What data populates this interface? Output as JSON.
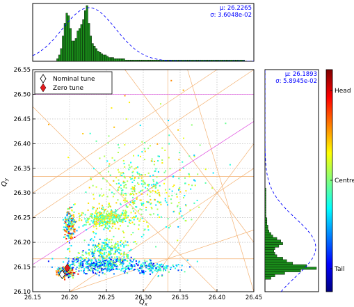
{
  "chart_data": [
    {
      "type": "scatter",
      "role": "main",
      "xlabel": "Q_x",
      "ylabel": "Q_y",
      "xlim": [
        26.15,
        26.45
      ],
      "ylim": [
        26.1,
        26.55
      ],
      "x_ticks": [
        "26.15",
        "26.20",
        "26.25",
        "26.30",
        "26.35",
        "26.40",
        "26.45"
      ],
      "y_ticks": [
        "26.10",
        "26.15",
        "26.20",
        "26.25",
        "26.30",
        "26.35",
        "26.40",
        "26.45",
        "26.50",
        "26.55"
      ],
      "grid": true,
      "legend": {
        "placement": "top-left",
        "entries": [
          {
            "label": "Nominal tune",
            "marker": "open-diamond",
            "color": "#ffffff"
          },
          {
            "label": "Zero tune",
            "marker": "filled-diamond",
            "color": "#e31a1c"
          }
        ]
      },
      "markers": {
        "nominal_tune": [
          26.19,
          26.135
        ],
        "zero_tune": [
          26.197,
          26.148
        ]
      },
      "resonance_lines": {
        "orange": [
          {
            "kind": "h",
            "y": 26.1667
          },
          {
            "kind": "h",
            "y": 26.3333
          },
          {
            "kind": "v",
            "x": 26.3333
          },
          {
            "kind": "seg",
            "x1": 26.15,
            "y1": 26.3,
            "x2": 26.4,
            "y2": 26.55
          },
          {
            "kind": "seg",
            "x1": 26.15,
            "y1": 26.25,
            "x2": 26.45,
            "y2": 26.55
          },
          {
            "kind": "seg",
            "x1": 26.2,
            "y1": 26.1,
            "x2": 26.45,
            "y2": 26.35
          },
          {
            "kind": "seg",
            "x1": 26.2,
            "y1": 26.1,
            "x2": 26.45,
            "y2": 26.225
          },
          {
            "kind": "seg",
            "x1": 26.275,
            "y1": 26.55,
            "x2": 26.45,
            "y2": 26.2
          },
          {
            "kind": "seg",
            "x1": 26.3,
            "y1": 26.1,
            "x2": 26.45,
            "y2": 26.4
          },
          {
            "kind": "seg",
            "x1": 26.15,
            "y1": 26.475,
            "x2": 26.4,
            "y2": 26.1
          },
          {
            "kind": "seg",
            "x1": 26.36,
            "y1": 26.55,
            "x2": 26.45,
            "y2": 26.1
          }
        ],
        "magenta": [
          {
            "kind": "h",
            "y": 26.5
          },
          {
            "kind": "seg",
            "x1": 26.15,
            "y1": 26.155,
            "x2": 26.45,
            "y2": 26.445
          }
        ]
      },
      "color_scale": [
        "#00007f",
        "#0000ff",
        "#007fff",
        "#00ffff",
        "#7fff7f",
        "#ffff00",
        "#ff7f00",
        "#ff0000",
        "#7f0000"
      ],
      "clusters": [
        {
          "cx": 26.195,
          "cy": 26.14,
          "sx": 0.006,
          "sy": 0.006,
          "n": 170,
          "c": [
            0.0,
            0.95
          ]
        },
        {
          "cx": 26.24,
          "cy": 26.155,
          "sx": 0.022,
          "sy": 0.008,
          "n": 360,
          "c": [
            0.1,
            0.55
          ]
        },
        {
          "cx": 26.305,
          "cy": 26.15,
          "sx": 0.022,
          "sy": 0.007,
          "n": 170,
          "c": [
            0.1,
            0.5
          ]
        },
        {
          "cx": 26.25,
          "cy": 26.185,
          "sx": 0.018,
          "sy": 0.012,
          "n": 230,
          "c": [
            0.25,
            0.65
          ]
        },
        {
          "cx": 26.25,
          "cy": 26.248,
          "sx": 0.016,
          "sy": 0.01,
          "n": 320,
          "c": [
            0.35,
            0.7
          ]
        },
        {
          "cx": 26.2,
          "cy": 26.235,
          "sx": 0.004,
          "sy": 0.017,
          "n": 170,
          "c": [
            0.2,
            0.9
          ]
        },
        {
          "cx": 26.285,
          "cy": 26.3,
          "sx": 0.028,
          "sy": 0.042,
          "n": 330,
          "c": [
            0.35,
            0.7
          ]
        },
        {
          "cx": 26.345,
          "cy": 26.3,
          "sx": 0.025,
          "sy": 0.045,
          "n": 90,
          "c": [
            0.3,
            0.7
          ]
        },
        {
          "cx": 26.3,
          "cy": 26.42,
          "sx": 0.04,
          "sy": 0.04,
          "n": 35,
          "c": [
            0.3,
            0.75
          ]
        }
      ]
    },
    {
      "type": "bar",
      "role": "top-histogram-Qx",
      "xlim": [
        26.15,
        26.45
      ],
      "bin_width": 0.0025,
      "bin_start": 26.1825,
      "values": [
        2,
        5,
        10,
        20,
        30,
        38,
        36,
        26,
        16,
        16,
        18,
        24,
        26,
        29,
        33,
        40,
        44,
        30,
        20,
        14,
        12,
        10,
        8,
        7,
        6,
        5,
        5,
        4,
        3,
        3,
        3,
        2,
        2,
        2,
        2,
        2,
        2,
        1,
        1,
        1,
        1,
        1,
        1,
        1,
        1,
        1,
        1,
        1,
        1,
        1,
        1,
        1,
        1,
        1,
        1,
        1,
        1,
        1,
        1,
        1,
        1,
        1,
        1,
        1,
        1,
        1,
        1,
        1,
        1,
        1,
        1,
        1,
        1,
        1,
        1,
        1,
        1,
        1,
        1,
        1,
        1,
        1,
        1,
        1,
        1,
        1,
        1,
        1,
        1,
        1,
        1,
        1,
        1,
        1,
        1,
        1,
        1,
        1,
        1,
        1,
        1,
        1
      ],
      "fit": {
        "label_mu": "μ: 26.2265",
        "label_sigma": "σ: 3.6048e-02",
        "mu": 26.2265,
        "sigma": 0.036048
      }
    },
    {
      "type": "bar",
      "role": "side-histogram-Qy",
      "orientation": "horizontal",
      "ylim": [
        26.1,
        26.55
      ],
      "bin_width": 0.005,
      "bin_start": 26.125,
      "values": [
        6,
        10,
        20,
        36,
        52,
        42,
        28,
        22,
        18,
        12,
        10,
        9,
        10,
        14,
        18,
        16,
        12,
        8,
        6,
        4,
        3,
        3,
        2,
        2,
        2,
        1,
        1,
        1,
        1,
        1,
        1,
        1,
        1,
        1,
        1,
        1,
        1
      ],
      "fit": {
        "label_mu": "μ: 26.1893",
        "label_sigma": "σ: 5.8945e-02",
        "mu": 26.1893,
        "sigma": 0.058945
      }
    },
    {
      "type": "colorbar",
      "role": "bunch-position",
      "labels": [
        "Head",
        "Centre",
        "Tail"
      ],
      "colors": [
        "#7f0000",
        "#ff0000",
        "#ff7f00",
        "#ffff00",
        "#7fff7f",
        "#00ffff",
        "#007fff",
        "#0000ff",
        "#00007f"
      ]
    }
  ]
}
